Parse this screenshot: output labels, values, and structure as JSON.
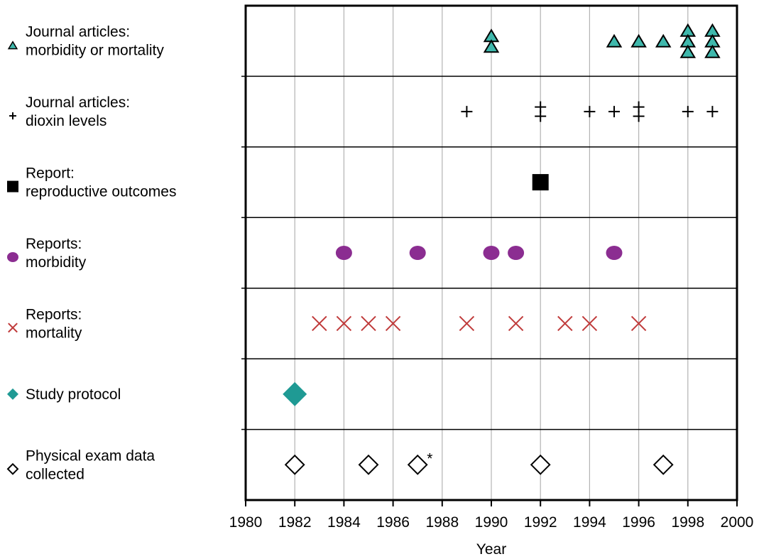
{
  "chart_data": {
    "type": "scatter",
    "title": "",
    "xlabel": "Year",
    "ylabel": "",
    "xlim": [
      1980,
      2000
    ],
    "x_ticks": [
      1980,
      1982,
      1984,
      1986,
      1988,
      1990,
      1992,
      1994,
      1996,
      1998,
      2000
    ],
    "grid": {
      "vertical": true,
      "horizontal_row_dividers": true
    },
    "colors": {
      "teal": "#3fb8ac",
      "dark_teal": "#1f9a94",
      "purple": "#8b2d91",
      "red": "#c03b3b",
      "black": "#000000",
      "grid": "#b3b3b3"
    },
    "series": [
      {
        "name": "Journal articles: morbidity or mortality",
        "label_lines": [
          "Journal articles:",
          "morbidity or mortality"
        ],
        "marker": "triangle",
        "points": [
          {
            "year": 1990,
            "count": 2
          },
          {
            "year": 1995,
            "count": 1
          },
          {
            "year": 1996,
            "count": 1
          },
          {
            "year": 1997,
            "count": 1
          },
          {
            "year": 1998,
            "count": 3
          },
          {
            "year": 1999,
            "count": 3
          }
        ]
      },
      {
        "name": "Journal articles: dioxin levels",
        "label_lines": [
          "Journal articles:",
          "dioxin levels"
        ],
        "marker": "plus",
        "points": [
          {
            "year": 1989,
            "count": 1
          },
          {
            "year": 1992,
            "count": 2
          },
          {
            "year": 1994,
            "count": 1
          },
          {
            "year": 1995,
            "count": 1
          },
          {
            "year": 1996,
            "count": 2
          },
          {
            "year": 1998,
            "count": 1
          },
          {
            "year": 1999,
            "count": 1
          }
        ]
      },
      {
        "name": "Report: reproductive outcomes",
        "label_lines": [
          "Report:",
          "reproductive outcomes"
        ],
        "marker": "square",
        "points": [
          {
            "year": 1992,
            "count": 1
          }
        ]
      },
      {
        "name": "Reports: morbidity",
        "label_lines": [
          "Reports:",
          "morbidity"
        ],
        "marker": "ellipse",
        "points": [
          {
            "year": 1984,
            "count": 1
          },
          {
            "year": 1987,
            "count": 1
          },
          {
            "year": 1990,
            "count": 1
          },
          {
            "year": 1991,
            "count": 1
          },
          {
            "year": 1995,
            "count": 1
          }
        ]
      },
      {
        "name": "Reports: mortality",
        "label_lines": [
          "Reports:",
          "mortality"
        ],
        "marker": "x",
        "points": [
          {
            "year": 1983,
            "count": 1
          },
          {
            "year": 1984,
            "count": 1
          },
          {
            "year": 1985,
            "count": 1
          },
          {
            "year": 1986,
            "count": 1
          },
          {
            "year": 1989,
            "count": 1
          },
          {
            "year": 1991,
            "count": 1
          },
          {
            "year": 1993,
            "count": 1
          },
          {
            "year": 1994,
            "count": 1
          },
          {
            "year": 1996,
            "count": 1
          }
        ]
      },
      {
        "name": "Study protocol",
        "label_lines": [
          "Study protocol"
        ],
        "marker": "diamond-filled",
        "points": [
          {
            "year": 1982,
            "count": 1
          }
        ]
      },
      {
        "name": "Physical exam data collected",
        "label_lines": [
          "Physical exam data",
          "collected"
        ],
        "marker": "diamond-open",
        "points": [
          {
            "year": 1982,
            "count": 1
          },
          {
            "year": 1985,
            "count": 1
          },
          {
            "year": 1987,
            "count": 1,
            "annotation": "*"
          },
          {
            "year": 1992,
            "count": 1
          },
          {
            "year": 1997,
            "count": 1
          }
        ]
      }
    ]
  }
}
